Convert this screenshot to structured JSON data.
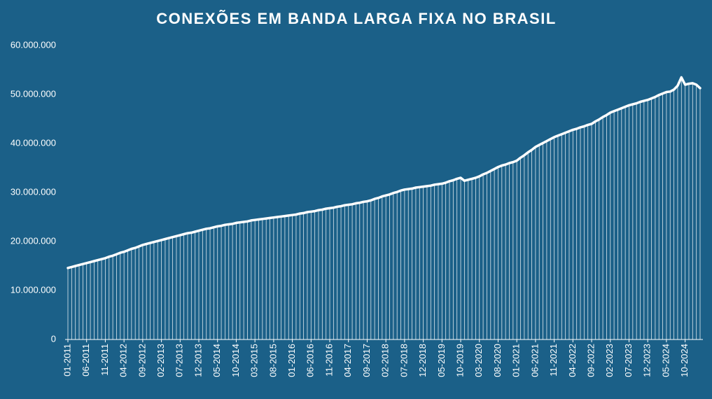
{
  "chart_data": {
    "type": "line",
    "title": "CONEXÕES EM BANDA LARGA FIXA NO BRASIL",
    "categories": [
      "01-2011",
      null,
      null,
      null,
      null,
      "06-2011",
      null,
      null,
      null,
      null,
      "11-2011",
      null,
      null,
      null,
      null,
      "04-2012",
      null,
      null,
      null,
      null,
      "09-2012",
      null,
      null,
      null,
      null,
      "02-2013",
      null,
      null,
      null,
      null,
      "07-2013",
      null,
      null,
      null,
      null,
      "12-2013",
      null,
      null,
      null,
      null,
      "05-2014",
      null,
      null,
      null,
      null,
      "10-2014",
      null,
      null,
      null,
      null,
      "03-2015",
      null,
      null,
      null,
      null,
      "08-2015",
      null,
      null,
      null,
      null,
      "01-2016",
      null,
      null,
      null,
      null,
      "06-2016",
      null,
      null,
      null,
      null,
      "11-2016",
      null,
      null,
      null,
      null,
      "04-2017",
      null,
      null,
      null,
      null,
      "09-2017",
      null,
      null,
      null,
      null,
      "02-2018",
      null,
      null,
      null,
      null,
      "07-2018",
      null,
      null,
      null,
      null,
      "12-2018",
      null,
      null,
      null,
      null,
      "05-2019",
      null,
      null,
      null,
      null,
      "10-2019",
      null,
      null,
      null,
      null,
      "03-2020",
      null,
      null,
      null,
      null,
      "08-2020",
      null,
      null,
      null,
      null,
      "01-2021",
      null,
      null,
      null,
      null,
      "06-2021",
      null,
      null,
      null,
      null,
      "11-2021",
      null,
      null,
      null,
      null,
      "04-2022",
      null,
      null,
      null,
      null,
      "09-2022",
      null,
      null,
      null,
      null,
      "02-2023",
      null,
      null,
      null,
      null,
      "07-2023",
      null,
      null,
      null,
      null,
      "12-2023",
      null,
      null,
      null,
      null,
      "05-2024",
      null,
      null,
      null,
      null,
      "10-2024",
      null,
      null,
      null,
      null
    ],
    "values": [
      14600000,
      14800000,
      15000000,
      15200000,
      15400000,
      15600000,
      15800000,
      16000000,
      16200000,
      16400000,
      16600000,
      16900000,
      17100000,
      17400000,
      17700000,
      17900000,
      18200000,
      18500000,
      18700000,
      19000000,
      19300000,
      19500000,
      19700000,
      19900000,
      20100000,
      20300000,
      20500000,
      20700000,
      20900000,
      21100000,
      21300000,
      21500000,
      21700000,
      21800000,
      22000000,
      22200000,
      22400000,
      22600000,
      22700000,
      22900000,
      23100000,
      23200000,
      23400000,
      23500000,
      23600000,
      23800000,
      23900000,
      24000000,
      24100000,
      24300000,
      24400000,
      24500000,
      24600000,
      24700000,
      24800000,
      24900000,
      25000000,
      25100000,
      25200000,
      25300000,
      25400000,
      25500000,
      25700000,
      25800000,
      26000000,
      26100000,
      26200000,
      26400000,
      26500000,
      26700000,
      26800000,
      26900000,
      27100000,
      27200000,
      27400000,
      27500000,
      27600000,
      27800000,
      27900000,
      28100000,
      28200000,
      28400000,
      28700000,
      28900000,
      29200000,
      29400000,
      29600000,
      29900000,
      30100000,
      30400000,
      30600000,
      30700000,
      30800000,
      31000000,
      31100000,
      31200000,
      31300000,
      31400000,
      31600000,
      31700000,
      31800000,
      32000000,
      32300000,
      32500000,
      32800000,
      33000000,
      32400000,
      32600000,
      32800000,
      33000000,
      33300000,
      33700000,
      34000000,
      34400000,
      34800000,
      35200000,
      35500000,
      35700000,
      36000000,
      36200000,
      36500000,
      37100000,
      37600000,
      38200000,
      38700000,
      39300000,
      39700000,
      40100000,
      40500000,
      40900000,
      41300000,
      41600000,
      41900000,
      42200000,
      42500000,
      42800000,
      43000000,
      43300000,
      43500000,
      43800000,
      44000000,
      44500000,
      44900000,
      45400000,
      45800000,
      46300000,
      46600000,
      46900000,
      47200000,
      47500000,
      47800000,
      48000000,
      48200000,
      48500000,
      48700000,
      48900000,
      49200000,
      49500000,
      49900000,
      50200000,
      50500000,
      50600000,
      51000000,
      51800000,
      53500000,
      52000000,
      52200000,
      52300000,
      52000000,
      51300000
    ],
    "color": "#ffffff",
    "ylim": [
      0,
      60000000
    ],
    "yticks": [
      0,
      {
        "value": 10000000,
        "label": "10.000.000"
      },
      {
        "value": 20000000,
        "label": "20.000.000"
      },
      {
        "value": 30000000,
        "label": "30.000.000"
      },
      {
        "value": 40000000,
        "label": "40.000.000"
      },
      {
        "value": 50000000,
        "label": "50.000.000"
      },
      {
        "value": 60000000,
        "label": "60.000.000"
      }
    ],
    "drop_lines": true
  }
}
